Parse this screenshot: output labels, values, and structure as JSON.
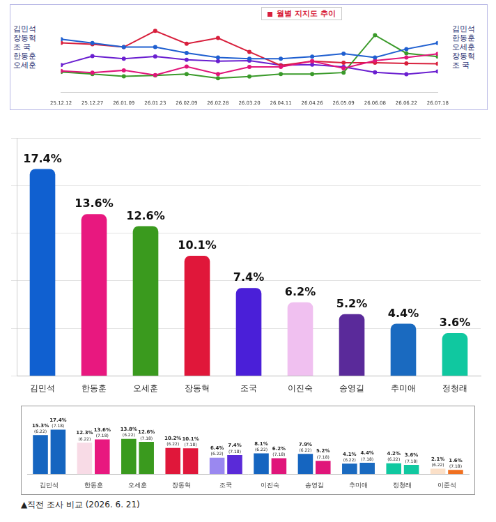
{
  "chart_data": [
    {
      "type": "line",
      "title": "월별 지지도 추이",
      "left_labels": [
        "김민석",
        "장동혁",
        "조 국",
        "한동훈",
        "오세훈"
      ],
      "categories": [
        "25.12.12",
        "25.12.27",
        "26.01.09",
        "26.01.23",
        "26.02.09",
        "26.02.28",
        "26.03.20",
        "26.04.11",
        "26.04.26",
        "26.05.09",
        "26.06.08",
        "26.06.22",
        "26.07.18"
      ],
      "series": [
        {
          "name": "김민석",
          "color": "#1f5fd0",
          "values": [
            18.8,
            17.4,
            16.0,
            16.0,
            13.9,
            12.3,
            11.9,
            11.9,
            12.6,
            13.7,
            12.3,
            15.3,
            17.4
          ]
        },
        {
          "name": "한동훈",
          "color": "#e0157a",
          "values": [
            7.6,
            7.0,
            7.8,
            6.1,
            9.1,
            6.5,
            9.0,
            9.0,
            11.0,
            8.5,
            11.2,
            12.3,
            13.6
          ]
        },
        {
          "name": "오세훈",
          "color": "#3a9a2a",
          "values": [
            7.2,
            6.5,
            5.7,
            6.0,
            6.5,
            5.0,
            5.6,
            6.5,
            6.5,
            7.0,
            20.2,
            13.8,
            12.6
          ]
        },
        {
          "name": "장동혁",
          "color": "#d81f3c",
          "values": [
            17.5,
            17.0,
            16.0,
            21.7,
            17.2,
            19.2,
            14.3,
            9.5,
            11.0,
            10.5,
            10.5,
            10.2,
            10.1
          ]
        },
        {
          "name": "조 국",
          "color": "#6a1fd0",
          "values": [
            9.7,
            12.8,
            11.9,
            12.7,
            11.5,
            11.0,
            11.2,
            9.6,
            9.8,
            9.0,
            7.1,
            6.4,
            7.4
          ]
        }
      ],
      "ylim": [
        0,
        24
      ],
      "grid": false,
      "tick_labels": "x",
      "marker": "circle",
      "data_labels": false
    },
    {
      "type": "bar",
      "categories": [
        "김민석",
        "한동훈",
        "오세훈",
        "장동혁",
        "조국",
        "이진숙",
        "송영길",
        "추미애",
        "정청래"
      ],
      "values": [
        17.4,
        13.6,
        12.6,
        10.1,
        7.4,
        6.2,
        5.2,
        4.4,
        3.6
      ],
      "value_labels": [
        "17.4%",
        "13.6%",
        "12.6%",
        "10.1%",
        "7.4%",
        "6.2%",
        "5.2%",
        "4.4%",
        "3.6%"
      ],
      "colors": [
        "#1060d0",
        "#e8187f",
        "#3a9a1e",
        "#e0173a",
        "#4a1fd8",
        "#f0c0f0",
        "#5a2a9a",
        "#1a6ac0",
        "#10c8a0"
      ],
      "ylim": [
        0,
        20
      ],
      "yticks": [
        0,
        4,
        8,
        12,
        16,
        20
      ],
      "grid": true,
      "tick_labels": "x",
      "data_labels": true
    },
    {
      "type": "bar",
      "caption": "▲직전 조사 비교 (2026. 6. 21)",
      "categories": [
        "김민석",
        "한동훈",
        "오세훈",
        "장동혁",
        "조국",
        "이진숙",
        "송영길",
        "추미애",
        "정청래",
        "이준석"
      ],
      "series": [
        {
          "name": "(6.22)",
          "values": [
            15.3,
            12.3,
            13.8,
            10.2,
            6.4,
            8.1,
            7.9,
            4.1,
            4.2,
            2.1
          ],
          "value_labels": [
            "15.3%",
            "12.3%",
            "13.8%",
            "10.2%",
            "6.4%",
            "8.1%",
            "7.9%",
            "4.1%",
            "4.2%",
            "2.1%"
          ],
          "colors": [
            "#1565c0",
            "#f8dbe6",
            "#3a9a1e",
            "#e0173a",
            "#9a88f0",
            "#1565c0",
            "#1565c0",
            "#1a6ac0",
            "#10c8a0",
            "#fbe0c8"
          ]
        },
        {
          "name": "(7.18)",
          "values": [
            17.4,
            13.6,
            12.6,
            10.1,
            7.4,
            6.2,
            5.2,
            4.4,
            3.6,
            1.6
          ],
          "value_labels": [
            "17.4%",
            "13.6%",
            "12.6%",
            "10.1%",
            "7.4%",
            "6.2%",
            "5.2%",
            "4.4%",
            "3.6%",
            "1.6%"
          ],
          "colors": [
            "#1565c0",
            "#e8187f",
            "#3a9a1e",
            "#e0173a",
            "#5a2ad8",
            "#e0157a",
            "#e0157a",
            "#1a6ac0",
            "#10c8a0",
            "#f07020"
          ]
        }
      ],
      "ylim": [
        0,
        20
      ],
      "grid": false,
      "tick_labels": "x",
      "data_labels": true
    }
  ]
}
